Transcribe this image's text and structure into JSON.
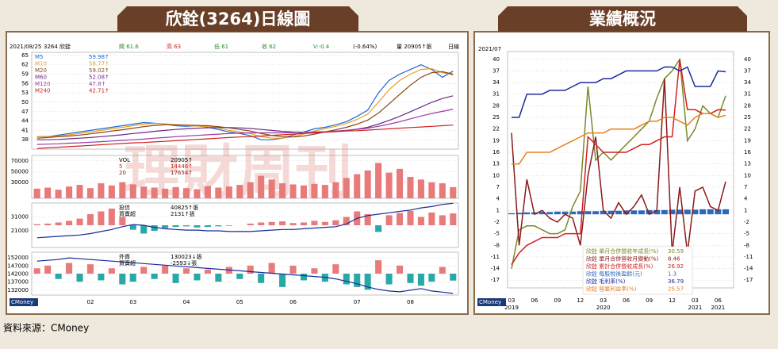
{
  "source": "資料來源：CMoney",
  "chart_data": [
    {
      "type": "line",
      "title": "欣銓(3264)日線圖",
      "watermark": "理財周刊",
      "logo": "CMoney",
      "header": [
        {
          "text": "2021/08/25",
          "color": "#000000"
        },
        {
          "text": "3264 欣銓",
          "color": "#000000"
        },
        {
          "text": "開 61.6",
          "color": "#2a8a2a"
        },
        {
          "text": "高 63",
          "color": "#d42020"
        },
        {
          "text": "低 61",
          "color": "#2a8a2a"
        },
        {
          "text": "收 62",
          "color": "#2a8a2a"
        },
        {
          "text": "V:-0.4",
          "color": "#2a8a2a"
        },
        {
          "text": "(-0.64%)",
          "color": "#000000"
        },
        {
          "text": "量 20905↑張",
          "color": "#000000"
        },
        {
          "text": "日線",
          "color": "#000000"
        }
      ],
      "categories": [
        null,
        null,
        null,
        null,
        null,
        "02",
        null,
        null,
        null,
        "03",
        null,
        null,
        null,
        null,
        "04",
        null,
        null,
        null,
        null,
        "05",
        null,
        null,
        null,
        null,
        "06",
        null,
        null,
        null,
        null,
        null,
        "07",
        null,
        null,
        null,
        null,
        "08",
        null,
        null,
        null,
        null
      ],
      "ylim": [
        35,
        66
      ],
      "yticks": [
        38,
        41,
        44,
        47,
        50,
        53,
        56,
        59,
        62,
        65
      ],
      "grid": true,
      "series": [
        {
          "name": "M5",
          "legend_value": "59.98↑",
          "color": "#1a6ad4",
          "values": [
            39,
            39,
            39.5,
            40,
            40.5,
            41,
            41.5,
            42,
            42.5,
            43,
            43.5,
            43.3,
            43,
            42.5,
            42.3,
            42.5,
            42,
            41.3,
            40.5,
            40,
            39.3,
            38,
            38,
            38.5,
            39.5,
            40.5,
            41.5,
            42,
            42.8,
            43.8,
            45.5,
            47.5,
            53,
            57,
            59,
            60.5,
            62,
            60.5,
            58,
            59.98
          ]
        },
        {
          "name": "M10",
          "legend_value": "58.77↑",
          "color": "#e8a020",
          "values": [
            39,
            39,
            39.2,
            39.6,
            40,
            40.5,
            41,
            41.5,
            42,
            42.5,
            43,
            43.2,
            43.1,
            42.8,
            42.5,
            42.4,
            42.2,
            41.8,
            41,
            40.5,
            40,
            39,
            38.5,
            38.5,
            39,
            39.8,
            40.8,
            41.6,
            42.3,
            43.2,
            44.5,
            46.2,
            50,
            54,
            57,
            59,
            60.5,
            60.8,
            59.5,
            58.77
          ]
        },
        {
          "name": "M20",
          "legend_value": "59.02↑",
          "color": "#8b4513",
          "values": [
            38.5,
            38.7,
            39,
            39.2,
            39.5,
            39.9,
            40.3,
            40.8,
            41.2,
            41.7,
            42.2,
            42.6,
            42.8,
            42.8,
            42.7,
            42.6,
            42.5,
            42.2,
            41.8,
            41.3,
            40.8,
            40,
            39.4,
            39,
            38.9,
            39.2,
            39.8,
            40.5,
            41.2,
            42,
            43,
            44.3,
            46.5,
            49.5,
            52.5,
            55.5,
            58,
            59.5,
            59.8,
            59.02
          ]
        },
        {
          "name": "M60",
          "legend_value": "52.08↑",
          "color": "#6a2a8a",
          "values": [
            38,
            38,
            38.1,
            38.3,
            38.5,
            38.7,
            39,
            39.3,
            39.6,
            40,
            40.3,
            40.7,
            41,
            41.3,
            41.5,
            41.7,
            41.8,
            41.9,
            41.9,
            41.8,
            41.6,
            41.3,
            41,
            40.7,
            40.5,
            40.4,
            40.4,
            40.5,
            40.7,
            41,
            41.4,
            42,
            43,
            44.2,
            45.5,
            47,
            48.5,
            50,
            51.2,
            52.08
          ]
        },
        {
          "name": "M120",
          "legend_value": "47.8↑",
          "color": "#9a3aa0",
          "values": [
            36.5,
            36.6,
            36.7,
            36.9,
            37,
            37.2,
            37.4,
            37.6,
            37.8,
            38,
            38.2,
            38.5,
            38.7,
            39,
            39.2,
            39.4,
            39.6,
            39.8,
            40,
            40.1,
            40.2,
            40.2,
            40.2,
            40.2,
            40.3,
            40.4,
            40.5,
            40.6,
            40.8,
            41,
            41.3,
            41.7,
            42.3,
            43,
            43.8,
            44.7,
            45.6,
            46.4,
            47.1,
            47.8
          ]
        },
        {
          "name": "M240",
          "legend_value": "42.71↑",
          "color": "#d42020",
          "values": [
            35.2,
            35.4,
            35.6,
            35.8,
            36,
            36.2,
            36.4,
            36.6,
            36.8,
            37,
            37.1,
            37.3,
            37.5,
            37.7,
            37.9,
            38.1,
            38.3,
            38.5,
            38.7,
            38.9,
            39,
            39.2,
            39.4,
            39.6,
            39.8,
            40,
            40.2,
            40.4,
            40.6,
            40.8,
            40.9,
            41.1,
            41.3,
            41.5,
            41.7,
            41.9,
            42.1,
            42.3,
            42.5,
            42.71
          ]
        }
      ]
    },
    {
      "type": "bar",
      "ylim": [
        0,
        80000
      ],
      "yticks": [
        30000,
        50000,
        70000
      ],
      "color": "#e87a7a",
      "legend": [
        {
          "name": "VOL",
          "value": "20905↑",
          "color": "#000000"
        },
        {
          "name": "5",
          "value": "14446↑",
          "color": "#d42020"
        },
        {
          "name": "20",
          "value": "17654↑",
          "color": "#8b1a1a"
        }
      ],
      "values": [
        18000,
        20000,
        16000,
        22000,
        25000,
        19000,
        28000,
        24000,
        30000,
        26000,
        22000,
        20000,
        18000,
        21000,
        19000,
        17000,
        23000,
        20000,
        22000,
        25000,
        30000,
        42000,
        35000,
        28000,
        26000,
        24000,
        27000,
        25000,
        30000,
        38000,
        45000,
        52000,
        66000,
        48000,
        55000,
        40000,
        35000,
        30000,
        28000,
        20905
      ]
    },
    {
      "type": "bar-line",
      "ylim": [
        9000,
        41000
      ],
      "yticks": [
        21000,
        31000
      ],
      "y2lim": [
        -4000,
        4000
      ],
      "legend": [
        {
          "name": "投信",
          "value": "40825↑張",
          "color": "#000000"
        },
        {
          "name": "買賣超",
          "value": "2131↑張",
          "color": "#000000"
        }
      ],
      "series": [
        {
          "color": "#1a2a9a",
          "values": [
            16000,
            16500,
            17000,
            17500,
            18000,
            19000,
            20500,
            22000,
            24000,
            25500,
            25000,
            23500,
            22500,
            22000,
            21500,
            21500,
            21000,
            21000,
            20500,
            20500,
            20500,
            21000,
            21500,
            22000,
            22000,
            22500,
            23000,
            23500,
            24000,
            26000,
            30000,
            32000,
            33000,
            34000,
            35000,
            36000,
            37500,
            38500,
            40000,
            40825
          ]
        },
        {
          "axis": "y2",
          "color": "#e87a7a",
          "values": [
            200,
            300,
            500,
            800,
            1200,
            2000,
            2500,
            3000,
            1500,
            -800,
            -1500,
            -1000,
            -500,
            -300,
            -200,
            -400,
            -300,
            -200,
            -100,
            0,
            300,
            500,
            600,
            700,
            400,
            500,
            800,
            600,
            900,
            1500,
            2500,
            2000,
            -1200,
            1800,
            2200,
            2600,
            1500,
            2300,
            1800,
            2131
          ]
        }
      ]
    },
    {
      "type": "bar-line",
      "ylim": [
        129000,
        155500
      ],
      "yticks": [
        132000,
        137000,
        142000,
        147000,
        152000
      ],
      "y2lim": [
        -8000,
        8000
      ],
      "legend": [
        {
          "name": "外資",
          "value": "130023↓張",
          "color": "#000000"
        },
        {
          "name": "買賣超",
          "value": "-2593↓張",
          "color": "#000000"
        }
      ],
      "series": [
        {
          "color": "#1a2a9a",
          "values": [
            150000,
            150500,
            151000,
            152000,
            151500,
            151000,
            150500,
            150000,
            149500,
            149000,
            148500,
            148000,
            147500,
            147000,
            146500,
            146000,
            145500,
            145000,
            144500,
            144000,
            143500,
            143000,
            142500,
            142000,
            141500,
            141000,
            140500,
            140000,
            139000,
            137500,
            136000,
            134000,
            132500,
            131500,
            131000,
            132000,
            133000,
            131500,
            130800,
            130023
          ]
        },
        {
          "axis": "y2",
          "color": "#e87a7a",
          "values": [
            2000,
            3000,
            -2000,
            4000,
            -3000,
            3500,
            -2500,
            2000,
            -4000,
            -3000,
            2500,
            -2000,
            3000,
            -3500,
            2000,
            -2500,
            1500,
            -3000,
            2500,
            -2000,
            3000,
            -3500,
            4000,
            -5000,
            3000,
            -2500,
            2000,
            -3000,
            3500,
            -4000,
            -5000,
            -6000,
            5000,
            -4000,
            3000,
            -3500,
            -4500,
            -3000,
            2500,
            -2593
          ]
        }
      ]
    },
    {
      "type": "combo",
      "title": "業績概況",
      "subtitle": "2021/07",
      "logo": "CMoney",
      "categories": [
        "03",
        null,
        null,
        "06",
        null,
        null,
        "09",
        null,
        null,
        "12",
        null,
        null,
        "03",
        null,
        null,
        "06",
        null,
        null,
        "09",
        null,
        null,
        "12",
        null,
        null,
        "03",
        null,
        null,
        "06",
        null
      ],
      "years": [
        "2019",
        null,
        null,
        null,
        null,
        null,
        null,
        null,
        null,
        null,
        null,
        null,
        "2020",
        null,
        null,
        null,
        null,
        null,
        null,
        null,
        null,
        null,
        null,
        null,
        "2021",
        null,
        null,
        "2021",
        null
      ],
      "ylim": [
        -19,
        42
      ],
      "yticks": [
        -17,
        -14,
        -11,
        -8,
        -5,
        -2,
        1,
        4,
        7,
        10,
        13,
        16,
        19,
        22,
        25,
        28,
        31,
        34,
        37,
        40
      ],
      "grid": true,
      "series": [
        {
          "name": "欣銓 單月合併營收年成長(%)",
          "mark": "line",
          "color": "#7a8a2a",
          "values": [
            -14,
            -4,
            -3,
            -3,
            -4,
            -5,
            -5,
            -4,
            2,
            6,
            33,
            14,
            16,
            14,
            16,
            18,
            20,
            22,
            24,
            30,
            35,
            37,
            40,
            19,
            22,
            28,
            26,
            25,
            30.59
          ]
        },
        {
          "name": "欣銓 單月合併營收月變動(%)",
          "mark": "line",
          "color": "#8b1a1a",
          "values": [
            21,
            -8,
            9,
            0,
            1,
            -1,
            -2,
            0,
            -1,
            -8,
            10,
            20,
            1,
            -1,
            3,
            0,
            2,
            5,
            0,
            1,
            35,
            -10,
            7,
            -10,
            6,
            7,
            2,
            1,
            8.46
          ]
        },
        {
          "name": "欣銓 累計合併營收成長(%)",
          "mark": "line",
          "color": "#d42020",
          "values": [
            -13,
            -10,
            -8,
            -7,
            -6,
            -6,
            -6,
            -5,
            -5,
            -5,
            20,
            18,
            16,
            16,
            16,
            16,
            17,
            18,
            18,
            19,
            20,
            20,
            40,
            27,
            27,
            26,
            26,
            27,
            26.92
          ]
        },
        {
          "name": "欣銓 每股稅後盈餘(元)",
          "mark": "bar",
          "color": "#2a6ab8",
          "values": [
            0.3,
            0.4,
            0.5,
            0.5,
            0.6,
            0.6,
            0.7,
            0.7,
            0.7,
            0.8,
            0.8,
            0.8,
            0.9,
            0.9,
            0.9,
            1,
            1,
            1,
            1.1,
            1.1,
            1.1,
            1.2,
            1.2,
            1.2,
            1.2,
            1.3,
            1.3,
            1.3,
            1.3
          ]
        },
        {
          "name": "欣銓 毛利率(%)",
          "mark": "line",
          "color": "#1a2a9a",
          "values": [
            25,
            25,
            31,
            31,
            31,
            32,
            32,
            32,
            33,
            34,
            34,
            34,
            35,
            35,
            36,
            37,
            37,
            37,
            37,
            37,
            38,
            38,
            37,
            38,
            33,
            33,
            33,
            37,
            36.79
          ]
        },
        {
          "name": "欣銓 營業利益率(%)",
          "mark": "line",
          "color": "#e8801a",
          "values": [
            13,
            13,
            16,
            16,
            16,
            16,
            17,
            18,
            19,
            20,
            21,
            21,
            21,
            22,
            22,
            22,
            22,
            23,
            24,
            24,
            25,
            25,
            24,
            23,
            25,
            26,
            26,
            25,
            25.57
          ]
        }
      ]
    }
  ]
}
